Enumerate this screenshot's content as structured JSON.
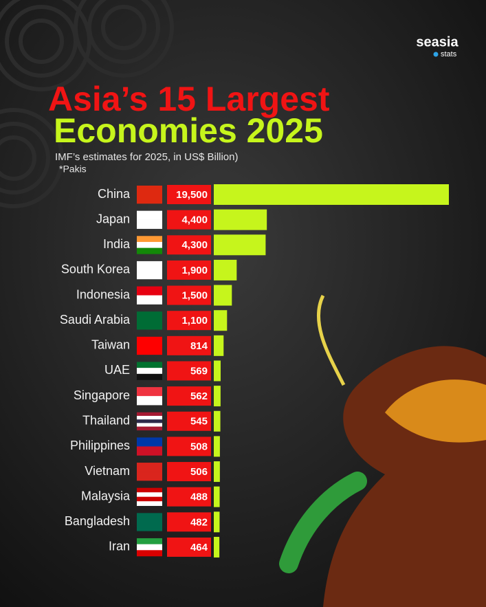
{
  "chart_data": {
    "type": "bar",
    "orientation": "horizontal",
    "title": "Asia’s 15 Largest",
    "title_line2": "Economies 2025",
    "subtitle": "IMF’s estimates for 2025, in US$ Billion)",
    "note": "*Pakis",
    "brand": "seasia",
    "brand_sub": "stats",
    "categories": [
      "China",
      "Japan",
      "India",
      "South Korea",
      "Indonesia",
      "Saudi Arabia",
      "Taiwan",
      "UAE",
      "Singapore",
      "Thailand",
      "Philippines",
      "Vietnam",
      "Malaysia",
      "Bangladesh",
      "Iran"
    ],
    "values": [
      19500,
      4400,
      4300,
      1900,
      1500,
      1100,
      814,
      569,
      562,
      545,
      508,
      506,
      488,
      482,
      464
    ],
    "value_labels": [
      "19,500",
      "4,400",
      "4,300",
      "1,900",
      "1,500",
      "1,100",
      "814",
      "569",
      "562",
      "545",
      "508",
      "506",
      "488",
      "482",
      "464"
    ],
    "color": "#c6f51c",
    "label_box_color": "#f01414"
  }
}
